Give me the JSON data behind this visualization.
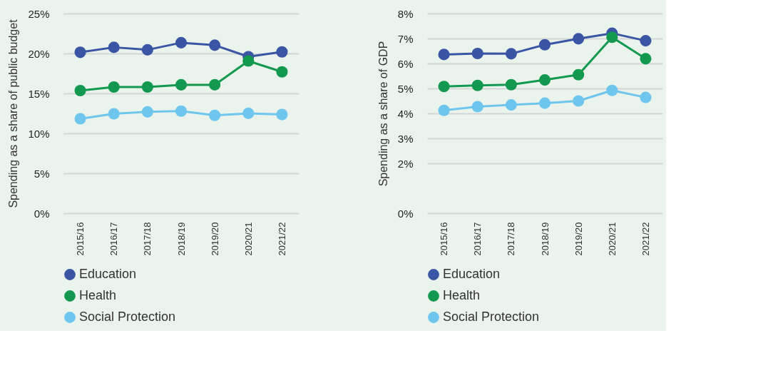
{
  "chart_data": [
    {
      "type": "line",
      "ylabel": "Spending as a share of public budget",
      "categories": [
        "2015/16",
        "2016/17",
        "2017/18",
        "2018/19",
        "2019/20",
        "2020/21",
        "2021/22"
      ],
      "series": [
        {
          "name": "Education",
          "color": "#3a55a4",
          "values": [
            20.15,
            20.77,
            20.46,
            21.35,
            21.04,
            19.6,
            20.2
          ]
        },
        {
          "name": "Health",
          "color": "#13984f",
          "values": [
            15.36,
            15.8,
            15.8,
            16.08,
            16.08,
            19.06,
            17.7
          ]
        },
        {
          "name": "Social Protection",
          "color": "#6ec6ee",
          "values": [
            11.83,
            12.46,
            12.69,
            12.79,
            12.25,
            12.51,
            12.36
          ]
        }
      ],
      "ylim": [
        0,
        25
      ],
      "yticks": [
        {
          "value": 0,
          "label": "0%"
        },
        {
          "value": 5,
          "label": "5%"
        },
        {
          "value": 10,
          "label": "10%"
        },
        {
          "value": 15,
          "label": "15%"
        },
        {
          "value": 20,
          "label": "20%"
        },
        {
          "value": 25,
          "label": "25%"
        }
      ],
      "grid": "y",
      "legend": "bottom left",
      "marker": "circle",
      "line_style": "solid"
    },
    {
      "type": "line",
      "ylabel": "Spending as  a share of GDP",
      "categories": [
        "2015/16",
        "2016/17",
        "2017/18",
        "2018/19",
        "2019/20",
        "2020/21",
        "2021/22"
      ],
      "series": [
        {
          "name": "Education",
          "color": "#3a55a4",
          "values": [
            6.36,
            6.4,
            6.39,
            6.75,
            6.99,
            7.21,
            6.91
          ]
        },
        {
          "name": "Health",
          "color": "#13984f",
          "values": [
            5.08,
            5.12,
            5.15,
            5.34,
            5.55,
            7.05,
            6.19
          ]
        },
        {
          "name": "Social Protection",
          "color": "#6ec6ee",
          "values": [
            4.12,
            4.27,
            4.34,
            4.41,
            4.5,
            4.92,
            4.64
          ]
        }
      ],
      "ylim": [
        0,
        8
      ],
      "yticks": [
        {
          "value": 0,
          "label": "0%"
        },
        {
          "value": 2,
          "label": "2%"
        },
        {
          "value": 3,
          "label": "3%"
        },
        {
          "value": 4,
          "label": "4%"
        },
        {
          "value": 5,
          "label": "5%"
        },
        {
          "value": 6,
          "label": "6%"
        },
        {
          "value": 7,
          "label": "7%"
        },
        {
          "value": 8,
          "label": "8%"
        }
      ],
      "grid": "y",
      "legend": "bottom left",
      "marker": "circle",
      "line_style": "solid"
    }
  ]
}
